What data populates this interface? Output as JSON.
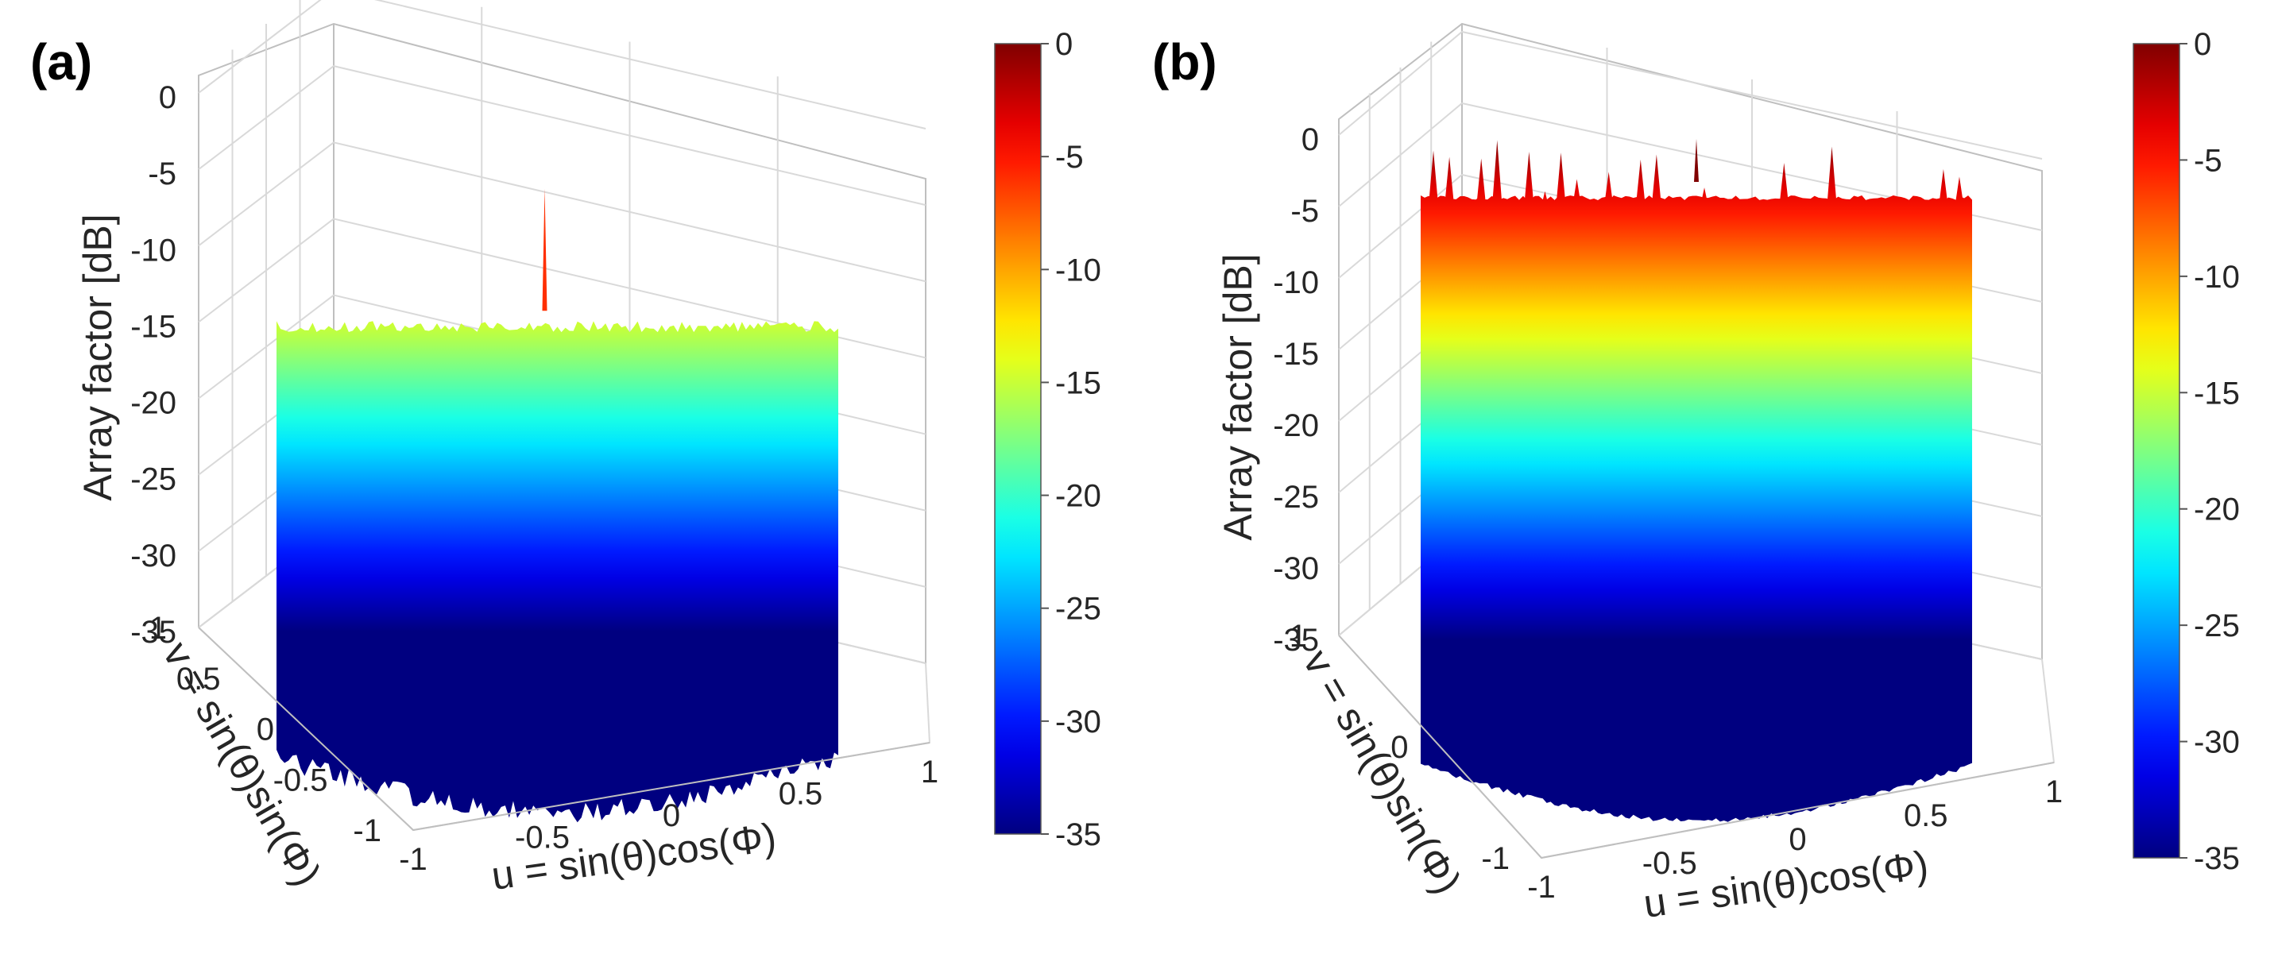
{
  "chart_data": [
    {
      "type": "surface3d",
      "panel_label": "(a)",
      "zlabel": "Array factor [dB]",
      "xlabel": "u = sin(θ)cos(Φ)",
      "ylabel": "v = sin(θ)sin(Φ)",
      "z_ticks": [
        "0",
        "-5",
        "-10",
        "-15",
        "-20",
        "-25",
        "-30",
        "-35"
      ],
      "z_tick_values": [
        0,
        -5,
        -10,
        -15,
        -20,
        -25,
        -30,
        -35
      ],
      "x_ticks": [
        "-1",
        "-0.5",
        "0",
        "0.5",
        "1"
      ],
      "x_tick_values": [
        -1,
        -0.5,
        0,
        0.5,
        1
      ],
      "y_ticks": [
        "1",
        "0.5",
        "0",
        "-0.5",
        "-1"
      ],
      "y_tick_values": [
        1,
        0.5,
        0,
        -0.5,
        -1
      ],
      "zlim": [
        -35,
        0
      ],
      "colorbar_ticks": [
        "0",
        "-5",
        "-10",
        "-15",
        "-20",
        "-25",
        "-30",
        "-35"
      ],
      "colorbar_values": [
        0,
        -5,
        -10,
        -15,
        -20,
        -25,
        -30,
        -35
      ],
      "colormap": "jet",
      "main_peak_db": -6,
      "sidelobe_level_db": -14,
      "grating_lobes": false
    },
    {
      "type": "surface3d",
      "panel_label": "(b)",
      "zlabel": "Array factor [dB]",
      "xlabel": "u = sin(θ)cos(Φ)",
      "ylabel": "v = sin(θ)sin(Φ)",
      "z_ticks": [
        "0",
        "-5",
        "-10",
        "-15",
        "-20",
        "-25",
        "-30",
        "-35"
      ],
      "z_tick_values": [
        0,
        -5,
        -10,
        -15,
        -20,
        -25,
        -30,
        -35
      ],
      "x_ticks": [
        "-1",
        "-0.5",
        "0",
        "0.5",
        "1"
      ],
      "x_tick_values": [
        -1,
        -0.5,
        0,
        0.5,
        1
      ],
      "y_ticks": [
        "1",
        "0",
        "-1"
      ],
      "y_tick_values": [
        1,
        0,
        -1
      ],
      "zlim": [
        -35,
        0
      ],
      "colorbar_ticks": [
        "0",
        "-5",
        "-10",
        "-15",
        "-20",
        "-25",
        "-30",
        "-35"
      ],
      "colorbar_values": [
        0,
        -5,
        -10,
        -15,
        -20,
        -25,
        -30,
        -35
      ],
      "colormap": "jet",
      "main_peak_db": 0,
      "sidelobe_level_db": -3,
      "grating_lobes": true
    }
  ]
}
